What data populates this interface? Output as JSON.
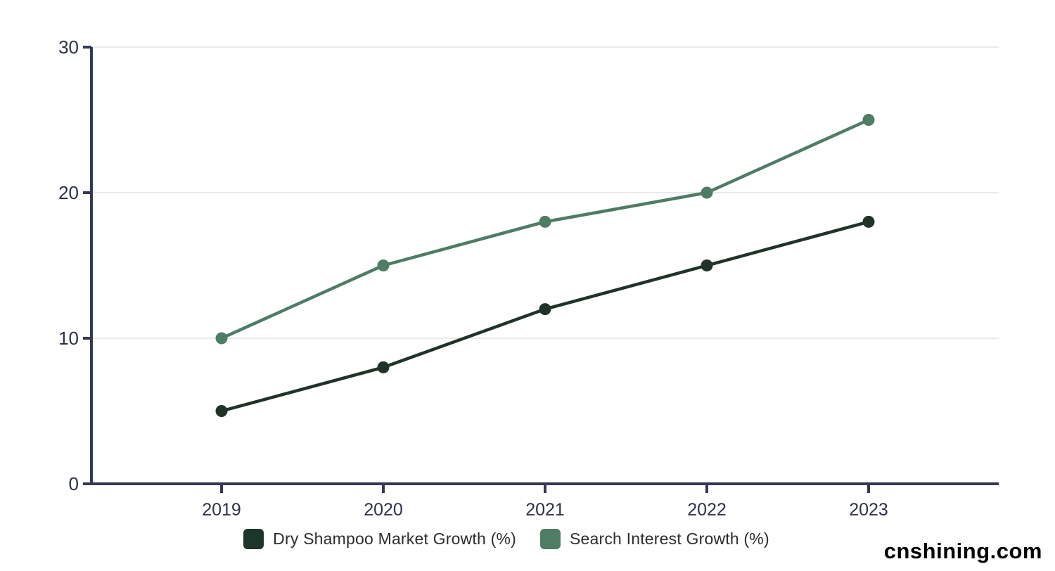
{
  "watermark": "cnshining.com",
  "chart_data": {
    "type": "line",
    "x": [
      "2019",
      "2020",
      "2021",
      "2022",
      "2023"
    ],
    "series": [
      {
        "name": "Dry Shampoo Market Growth (%)",
        "values": [
          5,
          8,
          12,
          15,
          18
        ],
        "color": "#213329",
        "swatch_color": "#1e3529"
      },
      {
        "name": "Search Interest Growth (%)",
        "values": [
          10,
          15,
          18,
          20,
          25
        ],
        "color": "#4e7c65",
        "swatch_color": "#4e7c65"
      }
    ],
    "title": "",
    "xlabel": "",
    "ylabel": "",
    "ylim": [
      0,
      30
    ],
    "yticks": [
      0,
      10,
      20,
      30
    ],
    "grid": "horizontal-only",
    "legend_position": "bottom",
    "axis_color": "#343a52",
    "grid_color": "#e3e3e3",
    "tick_label_color": "#2e3247",
    "marker": "circle"
  }
}
